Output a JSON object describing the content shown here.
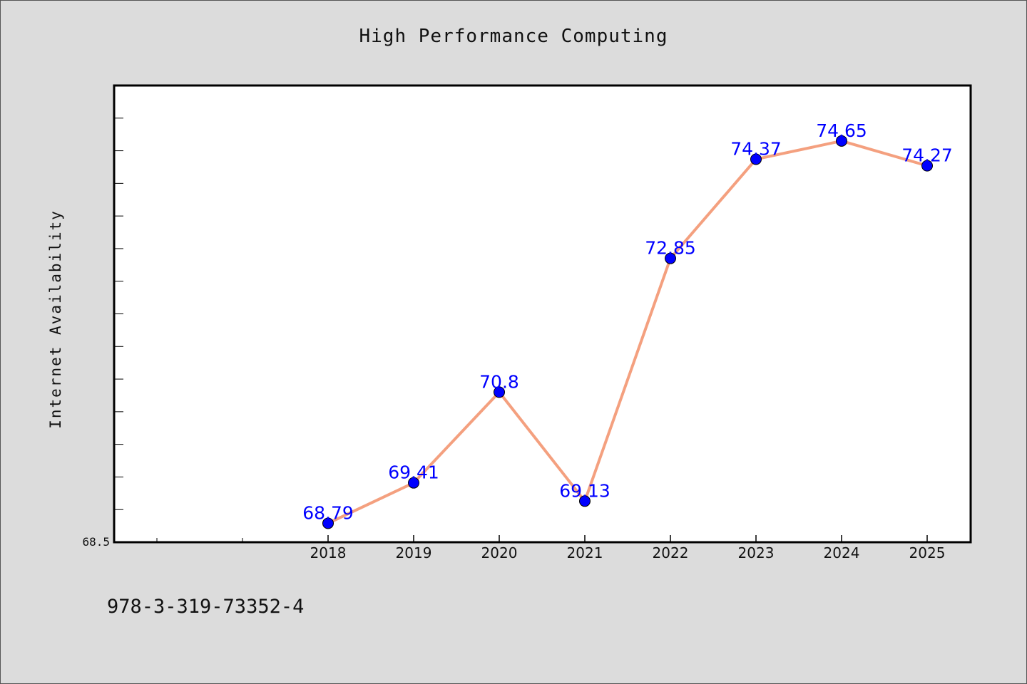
{
  "chart_data": {
    "type": "line",
    "title": "High Performance Computing",
    "xlabel": "",
    "ylabel": "Internet Availability",
    "categories": [
      "2018",
      "2019",
      "2020",
      "2021",
      "2022",
      "2023",
      "2024",
      "2025"
    ],
    "values": [
      68.79,
      69.41,
      70.8,
      69.13,
      72.85,
      74.37,
      74.65,
      74.27
    ],
    "data_labels": [
      "68.79",
      "69.41",
      "70.8",
      "69.13",
      "72.85",
      "74.37",
      "74.65",
      "74.27"
    ],
    "ylim": [
      68.5,
      75.5
    ],
    "y_tick_labels": [
      "68.5"
    ],
    "grid": false,
    "legend": "none",
    "colors": {
      "line": "#f4a07f",
      "marker": "#0000ff",
      "data_label": "#0000ff",
      "plot_background": "#ffffff",
      "figure_background": "#dcdcdc"
    }
  },
  "footer_note": "978-3-319-73352-4"
}
